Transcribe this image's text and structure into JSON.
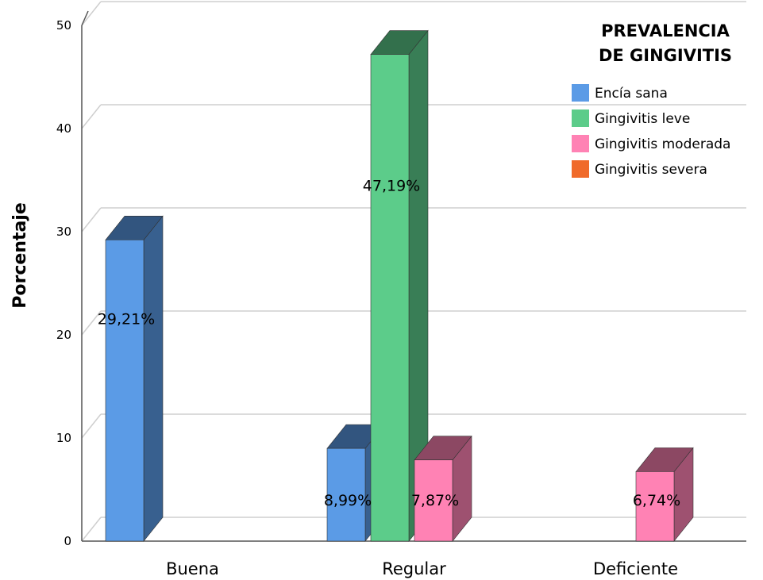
{
  "chart_data": {
    "type": "bar",
    "categories": [
      "Buena",
      "Regular",
      "Deficiente"
    ],
    "ylabel": "Porcentaje",
    "ylim": [
      0,
      50
    ],
    "yticks": [
      0,
      10,
      20,
      30,
      40,
      50
    ],
    "grid": true,
    "legend": {
      "title": "PREVALENCIA DE GINGIVITIS",
      "title_lines": [
        "PREVALENCIA",
        "DE GINGIVITIS"
      ],
      "placement": "top-right"
    },
    "series": [
      {
        "name": "Encía sana",
        "color": "#5b9be6",
        "values": [
          29.21,
          8.99,
          null
        ],
        "labels": [
          "29,21%",
          "8,99%",
          ""
        ]
      },
      {
        "name": "Gingivitis leve",
        "color": "#5ccc8a",
        "values": [
          null,
          47.19,
          null
        ],
        "labels": [
          "",
          "47,19%",
          ""
        ]
      },
      {
        "name": "Gingivitis moderada",
        "color": "#ff82b4",
        "values": [
          null,
          7.87,
          6.74
        ],
        "labels": [
          "",
          "7,87%",
          "6,74%"
        ]
      },
      {
        "name": "Gingivitis severa",
        "color": "#f06a2a",
        "values": [
          null,
          null,
          null
        ],
        "labels": [
          "",
          "",
          ""
        ]
      }
    ]
  }
}
